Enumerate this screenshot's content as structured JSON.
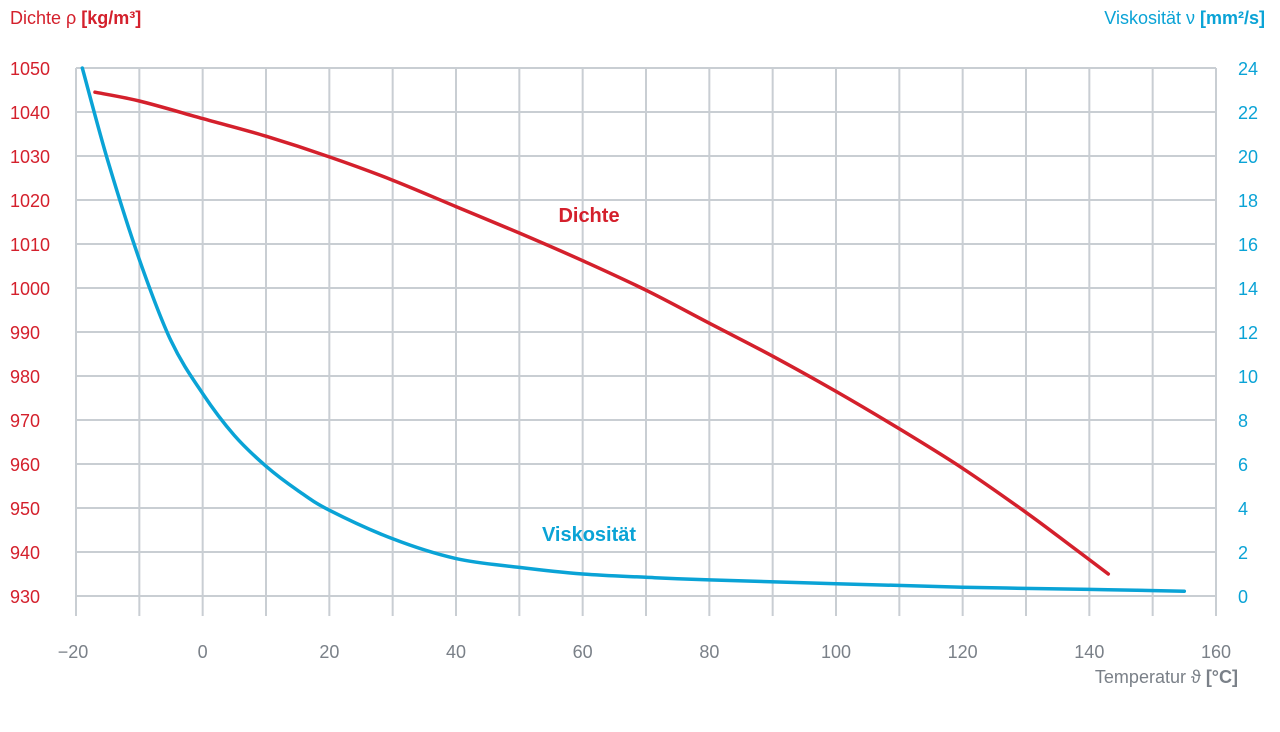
{
  "colors": {
    "density": "#d4202c",
    "viscosity": "#0aa3d6",
    "grid": "#c9ced3",
    "axis_text": "#7a8088"
  },
  "chart_data": {
    "type": "line",
    "y_left_title": {
      "text": "Dichte ρ ",
      "unit": "[kg/m³]"
    },
    "y_right_title": {
      "text": "Viskosität ν ",
      "unit": "[mm²/s]"
    },
    "x_title": {
      "text": "Temperatur ϑ ",
      "unit": "[°C]"
    },
    "xlim": [
      -20,
      160
    ],
    "x_ticks": [
      -20,
      0,
      20,
      40,
      60,
      80,
      100,
      120,
      140,
      160
    ],
    "x_tick_labels": [
      "−20",
      "0",
      "20",
      "40",
      "60",
      "80",
      "100",
      "120",
      "140",
      "160"
    ],
    "y_left_lim": [
      930,
      1050
    ],
    "y_left_ticks": [
      930,
      940,
      950,
      960,
      970,
      980,
      990,
      1000,
      1010,
      1020,
      1030,
      1040,
      1050
    ],
    "y_right_lim": [
      0,
      24
    ],
    "y_right_ticks": [
      0,
      2,
      4,
      6,
      8,
      10,
      12,
      14,
      16,
      18,
      20,
      22,
      24
    ],
    "grid": true,
    "series": [
      {
        "name": "Dichte",
        "axis": "left",
        "color": "#d4202c",
        "label_at": {
          "x": 61,
          "y": 1015
        },
        "points": [
          {
            "x": -17,
            "y": 1044.5
          },
          {
            "x": -10,
            "y": 1042.5
          },
          {
            "x": 0,
            "y": 1038.5
          },
          {
            "x": 10,
            "y": 1034.5
          },
          {
            "x": 20,
            "y": 1029.8
          },
          {
            "x": 30,
            "y": 1024.5
          },
          {
            "x": 40,
            "y": 1018.5
          },
          {
            "x": 50,
            "y": 1012.5
          },
          {
            "x": 60,
            "y": 1006.2
          },
          {
            "x": 70,
            "y": 999.5
          },
          {
            "x": 80,
            "y": 992.0
          },
          {
            "x": 90,
            "y": 984.5
          },
          {
            "x": 100,
            "y": 976.5
          },
          {
            "x": 110,
            "y": 968.0
          },
          {
            "x": 120,
            "y": 959.0
          },
          {
            "x": 130,
            "y": 949.0
          },
          {
            "x": 137,
            "y": 941.5
          },
          {
            "x": 143,
            "y": 935.0
          }
        ]
      },
      {
        "name": "Viskosität",
        "axis": "right",
        "color": "#0aa3d6",
        "label_at": {
          "x": 61,
          "y": 2.5
        },
        "points": [
          {
            "x": -19,
            "y": 24.0
          },
          {
            "x": -15,
            "y": 19.8
          },
          {
            "x": -10,
            "y": 15.3
          },
          {
            "x": -5,
            "y": 11.6
          },
          {
            "x": 0,
            "y": 9.2
          },
          {
            "x": 5,
            "y": 7.3
          },
          {
            "x": 10,
            "y": 5.9
          },
          {
            "x": 15,
            "y": 4.8
          },
          {
            "x": 20,
            "y": 3.9
          },
          {
            "x": 30,
            "y": 2.6
          },
          {
            "x": 40,
            "y": 1.7
          },
          {
            "x": 50,
            "y": 1.3
          },
          {
            "x": 60,
            "y": 1.0
          },
          {
            "x": 70,
            "y": 0.85
          },
          {
            "x": 80,
            "y": 0.73
          },
          {
            "x": 100,
            "y": 0.56
          },
          {
            "x": 120,
            "y": 0.4
          },
          {
            "x": 140,
            "y": 0.3
          },
          {
            "x": 155,
            "y": 0.22
          }
        ]
      }
    ]
  }
}
